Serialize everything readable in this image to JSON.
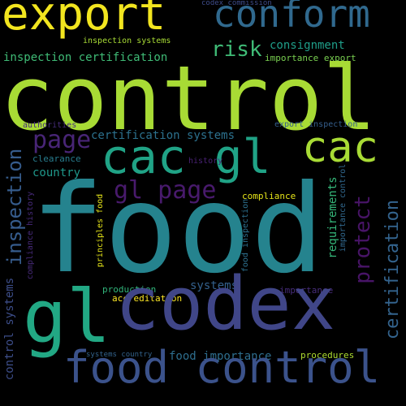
{
  "words": [
    {
      "text": "export",
      "color": "#f2e51f",
      "weight": 56,
      "rotate": 0
    },
    {
      "text": "conform",
      "color": "#30698e",
      "weight": 46,
      "rotate": 0
    },
    {
      "text": "codex commission",
      "color": "#3e4c8a",
      "weight": 9,
      "rotate": 0
    },
    {
      "text": "inspection systems",
      "color": "#a8db35",
      "weight": 10,
      "rotate": 0
    },
    {
      "text": "risk",
      "color": "#3fbb76",
      "weight": 26,
      "rotate": 0
    },
    {
      "text": "consignment",
      "color": "#1f9e89",
      "weight": 14,
      "rotate": 0
    },
    {
      "text": "inspection certification",
      "color": "#3fbb76",
      "weight": 14,
      "rotate": 0
    },
    {
      "text": "importance export",
      "color": "#7ad151",
      "weight": 11,
      "rotate": 0
    },
    {
      "text": "control",
      "color": "#a8db35",
      "weight": 110,
      "rotate": 0
    },
    {
      "text": "authorities",
      "color": "#472d7b",
      "weight": 10,
      "rotate": 0
    },
    {
      "text": "export inspection",
      "color": "#355f8d",
      "weight": 10,
      "rotate": 0
    },
    {
      "text": "page",
      "color": "#482576",
      "weight": 30,
      "rotate": 0
    },
    {
      "text": "certification systems",
      "color": "#2c718e",
      "weight": 14,
      "rotate": 0
    },
    {
      "text": "cac",
      "color": "#a8db35",
      "weight": 52,
      "rotate": 0
    },
    {
      "text": "cac gl",
      "color": "#20a386",
      "weight": 58,
      "rotate": 0
    },
    {
      "text": "clearance",
      "color": "#287d8e",
      "weight": 11,
      "rotate": 0
    },
    {
      "text": "history",
      "color": "#482173",
      "weight": 10,
      "rotate": 0
    },
    {
      "text": "country",
      "color": "#1f988b",
      "weight": 14,
      "rotate": 0
    },
    {
      "text": "gl page",
      "color": "#481a6c",
      "weight": 30,
      "rotate": 0
    },
    {
      "text": "compliance",
      "color": "#e5e419",
      "weight": 11,
      "rotate": 0
    },
    {
      "text": "food",
      "color": "#25838e",
      "weight": 150,
      "rotate": 0
    },
    {
      "text": "inspection",
      "color": "#365c8d",
      "weight": 24,
      "rotate": -90
    },
    {
      "text": "compliance history",
      "color": "#472a7a",
      "weight": 10,
      "rotate": -90
    },
    {
      "text": "principles food",
      "color": "#e5e419",
      "weight": 10,
      "rotate": -90
    },
    {
      "text": "food inspection",
      "color": "#2d708e",
      "weight": 10,
      "rotate": -90
    },
    {
      "text": "requirements",
      "color": "#35b779",
      "weight": 14,
      "rotate": -90
    },
    {
      "text": "importance control",
      "color": "#31688e",
      "weight": 10,
      "rotate": -90
    },
    {
      "text": "protect",
      "color": "#481467",
      "weight": 26,
      "rotate": -90
    },
    {
      "text": "certification",
      "color": "#33638d",
      "weight": 22,
      "rotate": -90
    },
    {
      "text": "control systems",
      "color": "#3d4e8a",
      "weight": 14,
      "rotate": -90
    },
    {
      "text": "systems",
      "color": "#34618d",
      "weight": 14,
      "rotate": 0
    },
    {
      "text": "production",
      "color": "#31b57b",
      "weight": 11,
      "rotate": 0
    },
    {
      "text": "importance",
      "color": "#472d7b",
      "weight": 11,
      "rotate": 0
    },
    {
      "text": "accreditation",
      "color": "#fde725",
      "weight": 11,
      "rotate": 0
    },
    {
      "text": "gl",
      "color": "#22a884",
      "weight": 90,
      "rotate": 0
    },
    {
      "text": "codex",
      "color": "#404688",
      "weight": 90,
      "rotate": 0
    },
    {
      "text": "systems country",
      "color": "#33638d",
      "weight": 9,
      "rotate": 0
    },
    {
      "text": "food importance",
      "color": "#2e6e8e",
      "weight": 14,
      "rotate": 0
    },
    {
      "text": "procedures",
      "color": "#addc30",
      "weight": 11,
      "rotate": 0
    },
    {
      "text": "food control",
      "color": "#3b528b",
      "weight": 54,
      "rotate": 0
    }
  ]
}
